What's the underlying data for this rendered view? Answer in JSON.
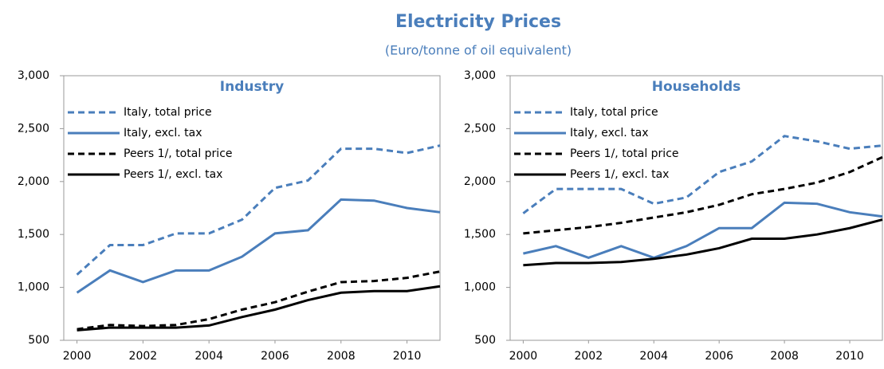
{
  "header": {
    "title": "Electricity Prices",
    "subtitle": "(Euro/tonne of oil equivalent)"
  },
  "chart_data": [
    {
      "type": "line",
      "title": "Industry",
      "x": [
        2000,
        2001,
        2002,
        2003,
        2004,
        2005,
        2006,
        2007,
        2008,
        2009,
        2010,
        2011
      ],
      "xlim": [
        1999.6,
        2011
      ],
      "xticks": [
        2000,
        2002,
        2004,
        2006,
        2008,
        2010
      ],
      "ylim": [
        500,
        3000
      ],
      "yticks": [
        500,
        {
          "value": 1000,
          "label": "1,000"
        },
        {
          "value": 1500,
          "label": "1,500"
        },
        {
          "value": 2000,
          "label": "2,000"
        },
        {
          "value": 2500,
          "label": "2,500"
        },
        {
          "value": 3000,
          "label": "3,000"
        }
      ],
      "legend": "upper left",
      "series": [
        {
          "name": "Italy, total price",
          "color": "#4a7ebb",
          "dashed": true,
          "values": [
            1120,
            1400,
            1400,
            1510,
            1510,
            1640,
            1940,
            2010,
            2310,
            2310,
            2270,
            2340
          ]
        },
        {
          "name": "Italy, excl. tax",
          "color": "#4a7ebb",
          "dashed": false,
          "values": [
            950,
            1160,
            1050,
            1160,
            1160,
            1290,
            1510,
            1540,
            1830,
            1820,
            1750,
            1710
          ]
        },
        {
          "name": "Peers 1/, total price",
          "color": "#000000",
          "dashed": true,
          "values": [
            605,
            645,
            635,
            645,
            700,
            790,
            860,
            960,
            1050,
            1060,
            1090,
            1150
          ]
        },
        {
          "name": "Peers 1/, excl. tax",
          "color": "#000000",
          "dashed": false,
          "values": [
            595,
            620,
            620,
            620,
            640,
            720,
            790,
            880,
            950,
            965,
            965,
            1010
          ]
        }
      ]
    },
    {
      "type": "line",
      "title": "Households",
      "x": [
        2000,
        2001,
        2002,
        2003,
        2004,
        2005,
        2006,
        2007,
        2008,
        2009,
        2010,
        2011
      ],
      "xlim": [
        1999.6,
        2011
      ],
      "xticks": [
        2000,
        2002,
        2004,
        2006,
        2008,
        2010
      ],
      "ylim": [
        500,
        3000
      ],
      "yticks": [
        500,
        {
          "value": 1000,
          "label": "1,000"
        },
        {
          "value": 1500,
          "label": "1,500"
        },
        {
          "value": 2000,
          "label": "2,000"
        },
        {
          "value": 2500,
          "label": "2,500"
        },
        {
          "value": 3000,
          "label": "3,000"
        }
      ],
      "legend": "upper left",
      "series": [
        {
          "name": "Italy, total price",
          "color": "#4a7ebb",
          "dashed": true,
          "values": [
            1700,
            1930,
            1930,
            1930,
            1790,
            1850,
            2090,
            2190,
            2430,
            2380,
            2310,
            2340
          ]
        },
        {
          "name": "Italy, excl. tax",
          "color": "#4a7ebb",
          "dashed": false,
          "values": [
            1320,
            1390,
            1280,
            1390,
            1280,
            1390,
            1560,
            1560,
            1800,
            1790,
            1710,
            1670
          ]
        },
        {
          "name": "Peers 1/, total price",
          "color": "#000000",
          "dashed": true,
          "values": [
            1510,
            1540,
            1570,
            1610,
            1660,
            1710,
            1780,
            1880,
            1930,
            1990,
            2090,
            2230
          ]
        },
        {
          "name": "Peers 1/, excl. tax",
          "color": "#000000",
          "dashed": false,
          "values": [
            1210,
            1230,
            1230,
            1240,
            1270,
            1310,
            1370,
            1460,
            1460,
            1500,
            1560,
            1640
          ]
        }
      ]
    }
  ]
}
